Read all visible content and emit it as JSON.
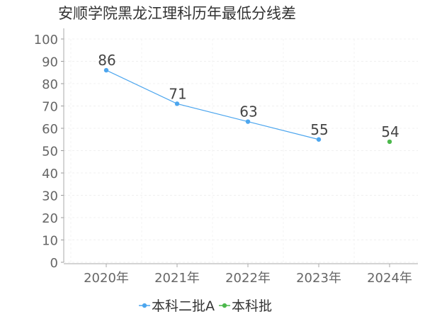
{
  "title": "安顺学院黑龙江理科历年最低分线差",
  "chart_data": {
    "type": "line",
    "categories": [
      "2020年",
      "2021年",
      "2022年",
      "2023年",
      "2024年"
    ],
    "series": [
      {
        "name": "本科二批A",
        "color": "#4da6ee",
        "values": [
          86,
          71,
          63,
          55,
          null
        ]
      },
      {
        "name": "本科批",
        "color": "#4cb84c",
        "values": [
          null,
          null,
          null,
          null,
          54
        ]
      }
    ],
    "ylim": [
      0,
      100
    ],
    "yticks": [
      0,
      10,
      20,
      30,
      40,
      50,
      60,
      70,
      80,
      90,
      100
    ],
    "grid": true,
    "legend_position": "bottom"
  }
}
